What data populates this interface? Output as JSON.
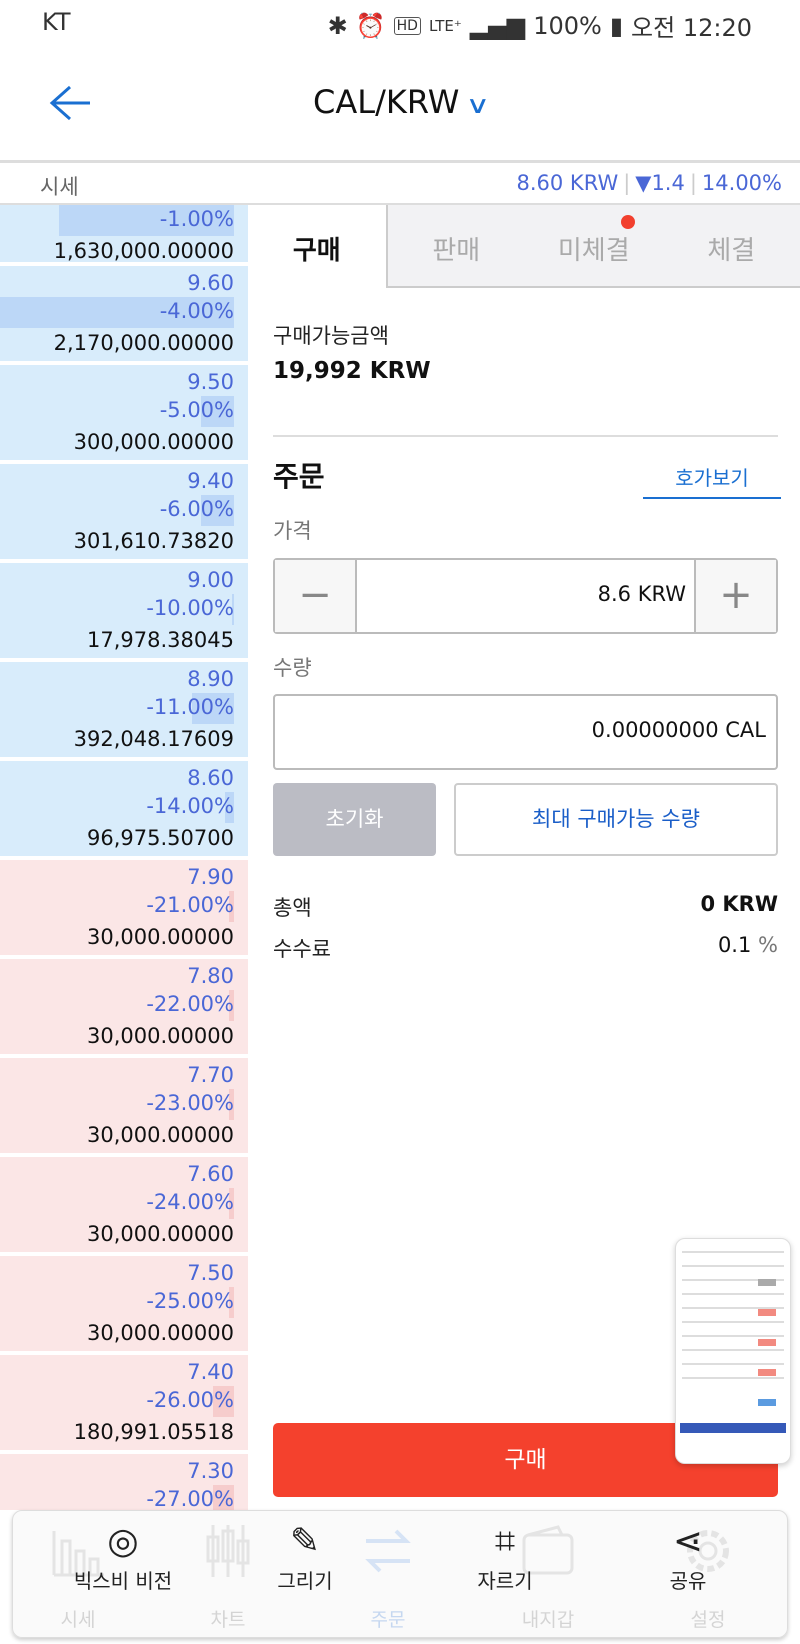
{
  "status_bar": {
    "carrier": "KT",
    "icons": [
      "bluetooth-icon",
      "alarm-icon",
      "hd-icon",
      "lte-icon",
      "signal-icon"
    ],
    "battery": "100%",
    "time": "오전 12:20"
  },
  "header": {
    "title": "CAL/KRW",
    "back_icon": "arrow-left-icon",
    "dropdown_icon": "chevron-down-icon"
  },
  "ticker": {
    "label": "시세",
    "price": "8.60 KRW",
    "change": "▼1.4",
    "rate": "14.00%"
  },
  "orderbook": {
    "asks": [
      {
        "price": "",
        "pct": "-1.00%",
        "volume": "1,630,000.00000",
        "bar": 0.75
      },
      {
        "price": "9.60",
        "pct": "-4.00%",
        "volume": "2,170,000.00000",
        "bar": 1.0
      },
      {
        "price": "9.50",
        "pct": "-5.00%",
        "volume": "300,000.00000",
        "bar": 0.14
      },
      {
        "price": "9.40",
        "pct": "-6.00%",
        "volume": "301,610.73820",
        "bar": 0.14
      },
      {
        "price": "9.00",
        "pct": "-10.00%",
        "volume": "17,978.38045",
        "bar": 0.01
      },
      {
        "price": "8.90",
        "pct": "-11.00%",
        "volume": "392,048.17609",
        "bar": 0.18
      },
      {
        "price": "8.60",
        "pct": "-14.00%",
        "volume": "96,975.50700",
        "bar": 0.04
      }
    ],
    "bids": [
      {
        "price": "7.90",
        "pct": "-21.00%",
        "volume": "30,000.00000",
        "bar": 0.02
      },
      {
        "price": "7.80",
        "pct": "-22.00%",
        "volume": "30,000.00000",
        "bar": 0.02
      },
      {
        "price": "7.70",
        "pct": "-23.00%",
        "volume": "30,000.00000",
        "bar": 0.02
      },
      {
        "price": "7.60",
        "pct": "-24.00%",
        "volume": "30,000.00000",
        "bar": 0.02
      },
      {
        "price": "7.50",
        "pct": "-25.00%",
        "volume": "30,000.00000",
        "bar": 0.02
      },
      {
        "price": "7.40",
        "pct": "-26.00%",
        "volume": "180,991.05518",
        "bar": 0.09
      },
      {
        "price": "7.30",
        "pct": "-27.00%",
        "volume": "",
        "bar": 0.09
      }
    ]
  },
  "tabs": [
    {
      "label": "구매",
      "active": true
    },
    {
      "label": "판매"
    },
    {
      "label": "미체결",
      "badge": true
    },
    {
      "label": "체결"
    }
  ],
  "order": {
    "available_label": "구매가능금액",
    "available_value": "19,992 KRW",
    "section_title": "주문",
    "orderbook_link": "호가보기",
    "price_label": "가격",
    "price_value": "8.6 KRW",
    "minus": "−",
    "plus": "+",
    "qty_label": "수량",
    "qty_value": "0.00000000 CAL",
    "reset_label": "초기화",
    "max_label": "최대 구매가능 수량",
    "total_label": "총액",
    "total_value": "0 KRW",
    "fee_label": "수수료",
    "fee_value": "0.1",
    "fee_unit": "%",
    "buy_label": "구매"
  },
  "bottom_nav": [
    {
      "label": "시세",
      "icon": "bar-chart-icon"
    },
    {
      "label": "차트",
      "icon": "candlestick-icon"
    },
    {
      "label": "주문",
      "icon": "swap-icon"
    },
    {
      "label": "내지갑",
      "icon": "wallet-icon"
    },
    {
      "label": "설정",
      "icon": "gear-icon"
    }
  ],
  "screenshot_toolbar": [
    {
      "label": "빅스비 비전",
      "icon": "eye-icon"
    },
    {
      "label": "그리기",
      "icon": "pen-icon"
    },
    {
      "label": "자르기",
      "icon": "crop-icon"
    },
    {
      "label": "공유",
      "icon": "share-icon"
    }
  ],
  "colors": {
    "accent": "#1a6fd1",
    "price_blue": "#4a67d6",
    "buy_red": "#f4412d",
    "ask_bg": "#d8ecfb",
    "bid_bg": "#fbe6e6"
  }
}
